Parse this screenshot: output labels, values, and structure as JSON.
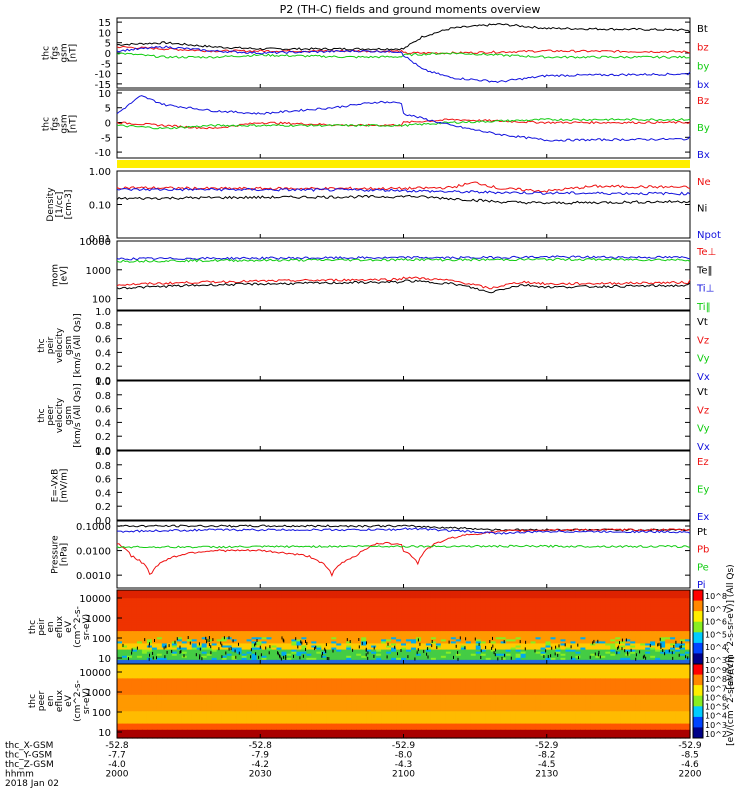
{
  "title": "P2 (TH-C) fields and ground moments overview",
  "colors": {
    "black": "#000000",
    "red": "#ee1111",
    "green": "#11cc11",
    "blue": "#1111dd",
    "yellow": "#ffee00"
  },
  "chart_data": [
    {
      "type": "line",
      "ylabel": [
        "thc",
        "fgs",
        "gsm",
        "[nT]"
      ],
      "yticks": [
        "15",
        "10",
        "5",
        "0",
        "-5",
        "-10",
        "-15"
      ],
      "ylim": [
        -17,
        17
      ],
      "series": [
        {
          "name": "Bt",
          "color": "black",
          "x": [
            2000,
            2010,
            2020,
            2030,
            2050,
            2100,
            2104,
            2110,
            2120,
            2130,
            2200
          ],
          "values": [
            4,
            5,
            3,
            2,
            2,
            2,
            8,
            12,
            14,
            12,
            10
          ]
        },
        {
          "name": "bz",
          "color": "red",
          "x": [
            2000,
            2010,
            2020,
            2030,
            2050,
            2100,
            2110,
            2130,
            2200
          ],
          "values": [
            3,
            2,
            1,
            1,
            1,
            0,
            0,
            1,
            0
          ]
        },
        {
          "name": "by",
          "color": "green",
          "x": [
            2000,
            2010,
            2020,
            2030,
            2050,
            2100,
            2110,
            2130,
            2200
          ],
          "values": [
            0,
            -2,
            -2,
            -1,
            -2,
            -1,
            0,
            -2,
            -2
          ]
        },
        {
          "name": "bx",
          "color": "blue",
          "x": [
            2000,
            2010,
            2020,
            2030,
            2050,
            2100,
            2104,
            2110,
            2120,
            2130,
            2200
          ],
          "values": [
            1,
            3,
            1,
            0,
            1,
            -1,
            -8,
            -12,
            -14,
            -11,
            -9
          ]
        }
      ]
    },
    {
      "type": "line",
      "ylabel": [
        "thc",
        "fgs",
        "gsm",
        "[nT]"
      ],
      "yticks": [
        "10",
        "5",
        "0",
        "-5",
        "-10"
      ],
      "ylim": [
        -12,
        11
      ],
      "series": [
        {
          "name": "Bz",
          "color": "red",
          "x": [
            2000,
            2010,
            2020,
            2030,
            2050,
            2100,
            2110,
            2130,
            2200
          ],
          "values": [
            0,
            -1,
            -2,
            0,
            -1,
            0,
            1,
            0,
            0
          ]
        },
        {
          "name": "By",
          "color": "green",
          "x": [
            2000,
            2010,
            2020,
            2030,
            2050,
            2100,
            2110,
            2130,
            2200
          ],
          "values": [
            -1,
            -2,
            -1,
            -1,
            -1,
            -1,
            0,
            1,
            1
          ]
        },
        {
          "name": "Bx",
          "color": "blue",
          "x": [
            2000,
            2005,
            2010,
            2020,
            2030,
            2045,
            2055,
            2100,
            2110,
            2120,
            2130,
            2200
          ],
          "values": [
            3,
            9,
            6,
            4,
            3,
            5,
            7,
            3,
            -1,
            -4,
            -6,
            -5
          ]
        }
      ]
    },
    {
      "type": "line",
      "scale": "log",
      "ylabel": [
        "Density",
        "[1/cc]",
        "[cm-3]"
      ],
      "yticks": [
        "1.00",
        "0.10",
        "0.01"
      ],
      "ylim": [
        0.01,
        1.0
      ],
      "series": [
        {
          "name": "Ne",
          "color": "red",
          "x": [
            2000,
            2020,
            2050,
            2100,
            2110,
            2115,
            2120,
            2130,
            2140,
            2200
          ],
          "values": [
            0.32,
            0.3,
            0.3,
            0.3,
            0.32,
            0.45,
            0.3,
            0.25,
            0.35,
            0.28
          ]
        },
        {
          "name": "Ni",
          "color": "black",
          "x": [
            2000,
            2020,
            2050,
            2100,
            2110,
            2120,
            2130,
            2200
          ],
          "values": [
            0.15,
            0.16,
            0.17,
            0.18,
            0.15,
            0.12,
            0.11,
            0.14
          ]
        },
        {
          "name": "Npot",
          "color": "blue",
          "x": [
            2000,
            2020,
            2050,
            2100,
            2110,
            2130,
            2200
          ],
          "values": [
            0.28,
            0.28,
            0.27,
            0.26,
            0.24,
            0.22,
            0.2
          ]
        }
      ]
    },
    {
      "type": "line",
      "scale": "log",
      "ylabel": [
        "mom",
        "[eV]"
      ],
      "yticks": [
        "10000",
        "1000",
        "100"
      ],
      "ylim": [
        40,
        10000
      ],
      "series": [
        {
          "name": "Te⊥",
          "color": "red",
          "x": [
            2000,
            2020,
            2050,
            2100,
            2110,
            2118,
            2125,
            2130,
            2200
          ],
          "values": [
            300,
            380,
            450,
            550,
            420,
            220,
            380,
            320,
            420
          ]
        },
        {
          "name": "Te‖",
          "color": "black",
          "x": [
            2000,
            2020,
            2050,
            2100,
            2110,
            2118,
            2125,
            2130,
            2200
          ],
          "values": [
            230,
            300,
            360,
            420,
            330,
            160,
            300,
            250,
            330
          ]
        },
        {
          "name": "Ti⊥",
          "color": "blue",
          "x": [
            2000,
            2020,
            2050,
            2100,
            2110,
            2130,
            2200
          ],
          "values": [
            2400,
            2500,
            2600,
            2700,
            2600,
            2800,
            2500
          ]
        },
        {
          "name": "Ti‖",
          "color": "green",
          "x": [
            2000,
            2020,
            2050,
            2100,
            2110,
            2130,
            2200
          ],
          "values": [
            2000,
            2100,
            2200,
            2300,
            2200,
            2300,
            2100
          ]
        }
      ]
    },
    {
      "type": "line",
      "ylabel": [
        "thc",
        "peir",
        "velocity",
        "gsm",
        "[km/s (All Qs)]"
      ],
      "yticks": [
        "1.0",
        "0.8",
        "0.6",
        "0.4",
        "0.2",
        "0.0"
      ],
      "ylim": [
        0,
        1
      ],
      "series": [
        {
          "name": "Vt",
          "color": "black",
          "x": [],
          "values": []
        },
        {
          "name": "Vz",
          "color": "red",
          "x": [],
          "values": []
        },
        {
          "name": "Vy",
          "color": "green",
          "x": [],
          "values": []
        },
        {
          "name": "Vx",
          "color": "blue",
          "x": [],
          "values": []
        }
      ]
    },
    {
      "type": "line",
      "ylabel": [
        "thc",
        "peer",
        "velocity",
        "gsm",
        "[km/s (All Qs)]"
      ],
      "yticks": [
        "1.0",
        "0.8",
        "0.6",
        "0.4",
        "0.2",
        "0.0"
      ],
      "ylim": [
        0,
        1
      ],
      "series": [
        {
          "name": "Vt",
          "color": "black",
          "x": [],
          "values": []
        },
        {
          "name": "Vz",
          "color": "red",
          "x": [],
          "values": []
        },
        {
          "name": "Vy",
          "color": "green",
          "x": [],
          "values": []
        },
        {
          "name": "Vx",
          "color": "blue",
          "x": [],
          "values": []
        }
      ]
    },
    {
      "type": "line",
      "ylabel": [
        "E=-VxB",
        "[mV/m]"
      ],
      "yticks": [
        "1.0",
        "0.8",
        "0.6",
        "0.4",
        "0.2",
        "0.0"
      ],
      "ylim": [
        0,
        1
      ],
      "series": [
        {
          "name": "Ez",
          "color": "red",
          "x": [],
          "values": []
        },
        {
          "name": "Ey",
          "color": "green",
          "x": [],
          "values": []
        },
        {
          "name": "Ex",
          "color": "blue",
          "x": [],
          "values": []
        }
      ]
    },
    {
      "type": "line",
      "scale": "log",
      "ylabel": [
        "Pressure",
        "[nPa]"
      ],
      "yticks": [
        "0.1000",
        "0.0100",
        "0.0010"
      ],
      "ylim": [
        0.0003,
        0.16
      ],
      "series": [
        {
          "name": "Pt",
          "color": "black",
          "x": [
            2000,
            2020,
            2050,
            2100,
            2120,
            2130,
            2200
          ],
          "values": [
            0.1,
            0.1,
            0.1,
            0.1,
            0.07,
            0.07,
            0.07
          ]
        },
        {
          "name": "Pb",
          "color": "red",
          "x": [
            2000,
            2003,
            2007,
            2010,
            2015,
            2020,
            2030,
            2040,
            2045,
            2050,
            2055,
            2100,
            2103,
            2107,
            2112,
            2120,
            2130,
            2200
          ],
          "values": [
            0.02,
            0.006,
            0.001,
            0.004,
            0.008,
            0.01,
            0.01,
            0.006,
            0.001,
            0.006,
            0.02,
            0.01,
            0.003,
            0.02,
            0.04,
            0.06,
            0.07,
            0.07
          ]
        },
        {
          "name": "Pe",
          "color": "green",
          "x": [
            2000,
            2020,
            2050,
            2100,
            2130,
            2200
          ],
          "values": [
            0.014,
            0.014,
            0.015,
            0.015,
            0.015,
            0.014
          ]
        },
        {
          "name": "Pi",
          "color": "blue",
          "x": [
            2000,
            2020,
            2050,
            2100,
            2120,
            2130,
            2200
          ],
          "values": [
            0.06,
            0.07,
            0.07,
            0.08,
            0.05,
            0.06,
            0.055
          ]
        }
      ]
    },
    {
      "type": "heatmap",
      "ylabel": [
        "thc",
        "peir",
        "en",
        "eflux",
        "eV",
        "(cm^2-s-",
        "sr-eV)"
      ],
      "yticks": [
        "10000",
        "1000",
        "100",
        "10"
      ],
      "colorbar_label": "[eV/(cm^2-s-sr-eV)] (All Qs)",
      "colorbar_ticks": [
        "10^8",
        "10^7",
        "10^6",
        "10^5",
        "10^4",
        "10^3"
      ]
    },
    {
      "type": "heatmap",
      "ylabel": [
        "thc",
        "peer",
        "en",
        "eflux",
        "eV",
        "(cm^2-s-",
        "sr-eV)"
      ],
      "yticks": [
        "10000",
        "1000",
        "100",
        "10"
      ],
      "colorbar_label": "[eV/(cm^2-s-sr-eV)]",
      "colorbar_ticks": [
        "10^9",
        "10^8",
        "10^7",
        "10^6",
        "10^5",
        "10^4",
        "10^3",
        "10^2"
      ]
    }
  ],
  "xaxis": {
    "rows": [
      {
        "label": "thc_X-GSM",
        "values": [
          "-52.8",
          "-52.8",
          "-52.9",
          "-52.9",
          "-52.9"
        ]
      },
      {
        "label": "thc_Y-GSM",
        "values": [
          "-7.7",
          "-7.9",
          "-8.0",
          "-8.2",
          "-8.5"
        ]
      },
      {
        "label": "thc_Z-GSM",
        "values": [
          "-4.0",
          "-4.2",
          "-4.3",
          "-4.5",
          "-4.6"
        ]
      },
      {
        "label": "hhmm",
        "values": [
          "2000",
          "2030",
          "2100",
          "2130",
          "2200"
        ]
      }
    ],
    "date": "2018 Jan 02"
  }
}
